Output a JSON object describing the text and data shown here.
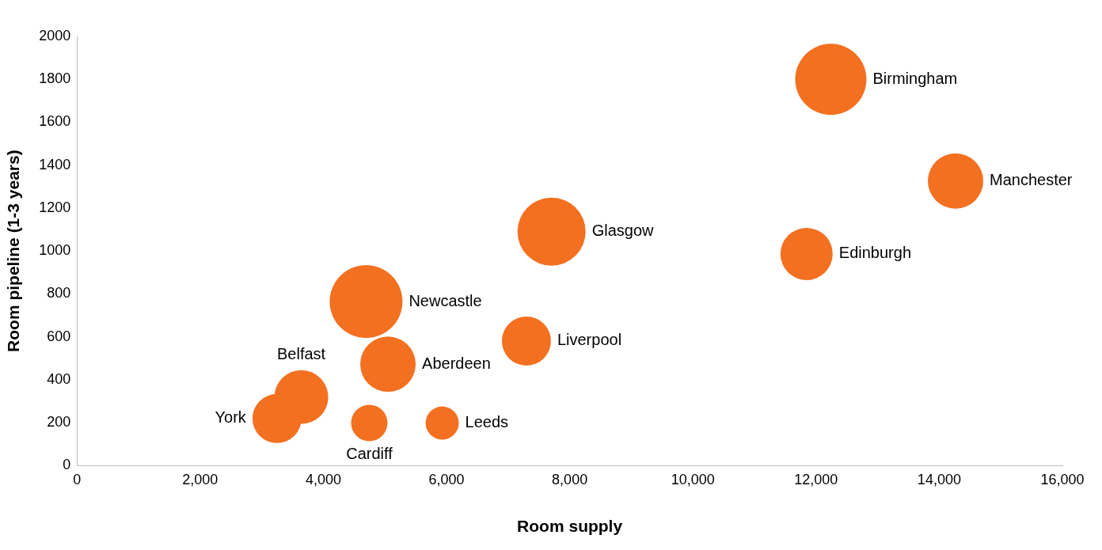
{
  "chart_data": {
    "type": "bubble",
    "xlabel": "Room supply",
    "ylabel": "Room pipeline (1-3 years)",
    "x": [
      12240,
      14265,
      7705,
      11846,
      4694,
      7297,
      5049,
      3642,
      3247,
      4746,
      5930
    ],
    "values": [
      1800,
      1326,
      1090,
      986,
      764,
      580,
      472,
      319,
      219,
      198,
      198
    ],
    "sizes": [
      0.957,
      0.579,
      0.874,
      0.515,
      1,
      0.454,
      0.579,
      0.546,
      0.454,
      0.25,
      0.208
    ],
    "color": "#f37021",
    "annotations": [
      {
        "text": "Birmingham",
        "x": 12240,
        "y": 1800
      },
      {
        "text": "Manchester",
        "x": 14265,
        "y": 1326
      },
      {
        "text": "Glasgow",
        "x": 7705,
        "y": 1090
      },
      {
        "text": "Edinburgh",
        "x": 11846,
        "y": 986
      },
      {
        "text": "Newcastle",
        "x": 4694,
        "y": 764
      },
      {
        "text": "Liverpool",
        "x": 7297,
        "y": 580
      },
      {
        "text": "Aberdeen",
        "x": 5049,
        "y": 472
      },
      {
        "text": "Belfast",
        "x": 3642,
        "y": 319
      },
      {
        "text": "York",
        "x": 3247,
        "y": 219
      },
      {
        "text": "Cardiff",
        "x": 4746,
        "y": 198
      },
      {
        "text": "Leeds",
        "x": 5930,
        "y": 198
      }
    ],
    "xlim": [
      0,
      16000
    ],
    "ylim": [
      0,
      2000
    ],
    "xticks": [
      0,
      {
        "value": 2000,
        "label": "2,000"
      },
      {
        "value": 4000,
        "label": "4,000"
      },
      {
        "value": 6000,
        "label": "6,000"
      },
      {
        "value": 8000,
        "label": "8,000"
      },
      {
        "value": 10000,
        "label": "10,000"
      },
      {
        "value": 12000,
        "label": "12,000"
      },
      {
        "value": 14000,
        "label": "14,000"
      },
      {
        "value": 16000,
        "label": "16,000"
      }
    ],
    "yticks": [
      0,
      200,
      400,
      600,
      800,
      1000,
      1200,
      1400,
      1600,
      1800,
      2000
    ],
    "grid": false,
    "legend": false
  }
}
